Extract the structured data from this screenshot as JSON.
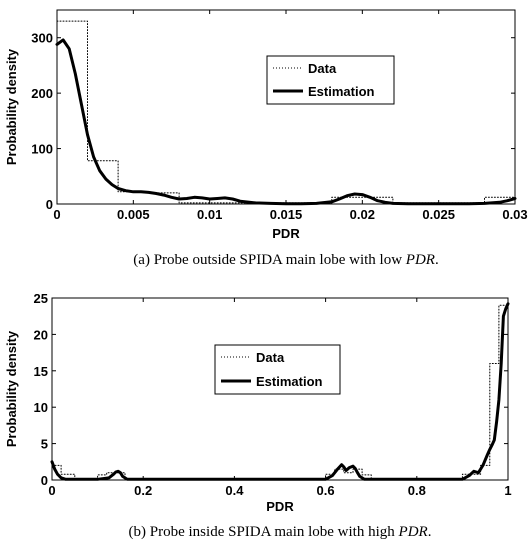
{
  "chart_data": [
    {
      "type": "line",
      "panel": "a",
      "caption": {
        "prefix": "(a) Probe outside SPIDA main lobe with low ",
        "math": "PDR",
        "suffix": "."
      },
      "xlabel": "PDR",
      "ylabel": "Probability density",
      "xlim": [
        0,
        0.03
      ],
      "ylim": [
        0,
        350
      ],
      "xticks": [
        0,
        0.005,
        0.01,
        0.015,
        0.02,
        0.025,
        0.03
      ],
      "xtick_labels": [
        "0",
        "0.005",
        "0.01",
        "0.015",
        "0.02",
        "0.025",
        "0.03"
      ],
      "yticks": [
        0,
        100,
        200,
        300
      ],
      "ytick_labels": [
        "0",
        "100",
        "200",
        "300"
      ],
      "grid": false,
      "legend": {
        "position": "center-right",
        "entries": [
          "Data",
          "Estimation"
        ]
      },
      "series": [
        {
          "name": "Data",
          "style": "dotted-histogram",
          "x": [
            0,
            0.002,
            0.002,
            0.004,
            0.004,
            0.006,
            0.006,
            0.008,
            0.008,
            0.018,
            0.018,
            0.022,
            0.022,
            0.028,
            0.028,
            0.03
          ],
          "y": [
            330,
            330,
            78,
            78,
            22,
            22,
            20,
            20,
            2,
            2,
            12,
            12,
            2,
            2,
            12,
            12
          ]
        },
        {
          "name": "Estimation",
          "style": "solid-thick",
          "x": [
            0,
            0.0004,
            0.0008,
            0.0012,
            0.0016,
            0.002,
            0.0024,
            0.0028,
            0.0032,
            0.0036,
            0.004,
            0.0045,
            0.005,
            0.0055,
            0.006,
            0.0065,
            0.007,
            0.0075,
            0.008,
            0.0085,
            0.009,
            0.0095,
            0.01,
            0.0105,
            0.011,
            0.0115,
            0.012,
            0.013,
            0.014,
            0.015,
            0.016,
            0.017,
            0.018,
            0.0185,
            0.019,
            0.0195,
            0.02,
            0.0205,
            0.021,
            0.0215,
            0.022,
            0.023,
            0.024,
            0.025,
            0.026,
            0.027,
            0.028,
            0.029,
            0.0295,
            0.03
          ],
          "y": [
            288,
            296,
            280,
            235,
            180,
            125,
            85,
            60,
            45,
            35,
            28,
            24,
            22,
            22,
            21,
            19,
            16,
            12,
            9,
            10,
            12,
            11,
            9,
            10,
            11,
            9,
            5,
            2,
            1,
            0.5,
            0.5,
            1,
            4,
            9,
            15,
            18,
            17,
            12,
            6,
            3,
            1,
            0.5,
            0.5,
            0.5,
            0.5,
            0.5,
            1,
            3,
            6,
            10
          ]
        }
      ]
    },
    {
      "type": "line",
      "panel": "b",
      "caption": {
        "prefix": "(b) Probe inside SPIDA main lobe with high ",
        "math": "PDR",
        "suffix": "."
      },
      "xlabel": "PDR",
      "ylabel": "Probability density",
      "xlim": [
        0,
        1
      ],
      "ylim": [
        0,
        25
      ],
      "xticks": [
        0,
        0.2,
        0.4,
        0.6,
        0.8,
        1
      ],
      "xtick_labels": [
        "0",
        "0.2",
        "0.4",
        "0.6",
        "0.8",
        "1"
      ],
      "yticks": [
        0,
        5,
        10,
        15,
        20,
        25
      ],
      "ytick_labels": [
        "0",
        "5",
        "10",
        "15",
        "20",
        "25"
      ],
      "grid": false,
      "legend": {
        "position": "center",
        "entries": [
          "Data",
          "Estimation"
        ]
      },
      "series": [
        {
          "name": "Data",
          "style": "dotted-histogram",
          "x": [
            0,
            0.02,
            0.02,
            0.05,
            0.05,
            0.1,
            0.1,
            0.12,
            0.12,
            0.16,
            0.16,
            0.6,
            0.6,
            0.62,
            0.62,
            0.64,
            0.64,
            0.66,
            0.66,
            0.68,
            0.68,
            0.7,
            0.7,
            0.9,
            0.9,
            0.94,
            0.94,
            0.96,
            0.96,
            0.98,
            0.98,
            1
          ],
          "y": [
            2,
            2,
            0.8,
            0.8,
            0,
            0,
            0.7,
            0.7,
            1,
            1,
            0,
            0,
            0.8,
            0.8,
            1.5,
            1.5,
            1,
            1,
            1.5,
            1.5,
            0.7,
            0.7,
            0,
            0,
            0.8,
            0.8,
            2,
            2,
            16,
            16,
            24,
            24
          ]
        },
        {
          "name": "Estimation",
          "style": "solid-thick",
          "x": [
            0,
            0.006,
            0.012,
            0.02,
            0.03,
            0.06,
            0.1,
            0.125,
            0.135,
            0.14,
            0.145,
            0.15,
            0.155,
            0.165,
            0.2,
            0.4,
            0.6,
            0.615,
            0.625,
            0.635,
            0.64,
            0.645,
            0.652,
            0.66,
            0.665,
            0.67,
            0.675,
            0.685,
            0.7,
            0.8,
            0.9,
            0.915,
            0.925,
            0.935,
            0.945,
            0.955,
            0.96,
            0.965,
            0.97,
            0.975,
            0.98,
            0.985,
            0.99,
            0.995,
            1
          ],
          "y": [
            2.5,
            1.5,
            0.8,
            0.3,
            0.1,
            0.1,
            0.1,
            0.3,
            0.8,
            1.1,
            1.2,
            1.0,
            0.5,
            0.1,
            0.1,
            0.1,
            0.1,
            0.6,
            1.4,
            2.1,
            1.8,
            1.3,
            1.7,
            1.9,
            1.6,
            1.0,
            0.5,
            0.1,
            0.1,
            0.1,
            0.1,
            0.6,
            1.2,
            1.0,
            2.0,
            3.5,
            4.2,
            4.8,
            5.5,
            8.0,
            11.0,
            16.0,
            22.5,
            23.5,
            24.2
          ]
        }
      ]
    }
  ]
}
